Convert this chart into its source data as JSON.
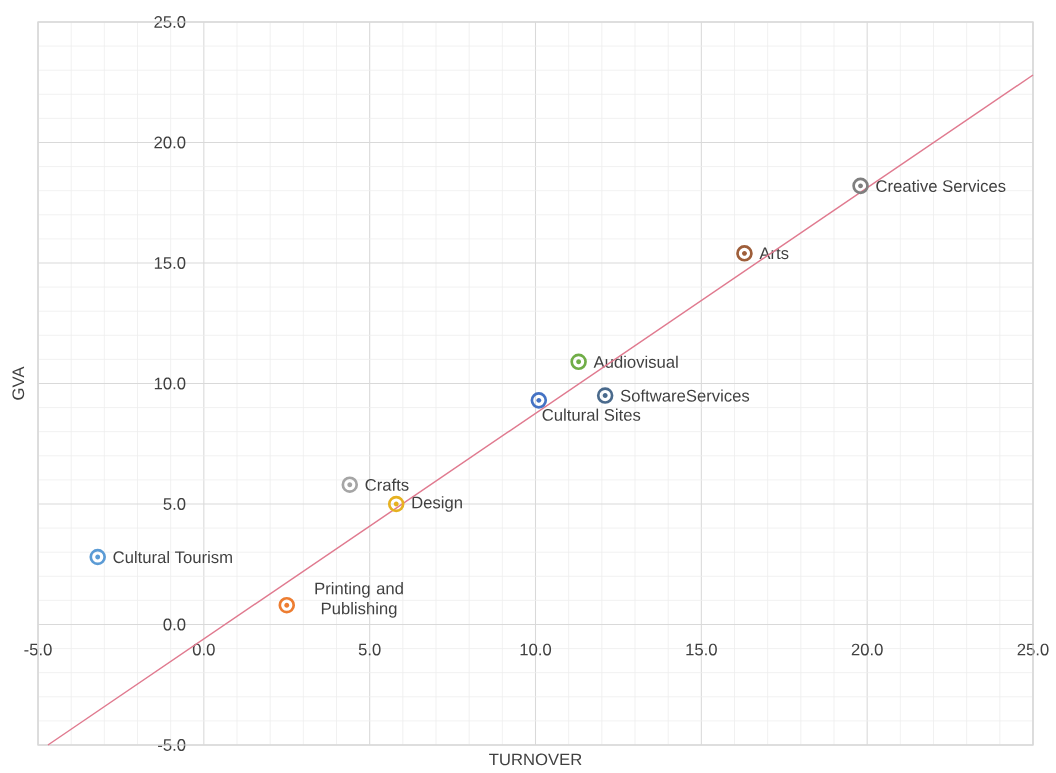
{
  "chart_data": {
    "type": "scatter",
    "xlabel": "TURNOVER",
    "ylabel": "GVA",
    "xlim": [
      -5,
      25
    ],
    "ylim": [
      -5,
      25
    ],
    "xticks": [
      {
        "value": -5,
        "label": "-5.0"
      },
      {
        "value": 0,
        "label": "0.0"
      },
      {
        "value": 5,
        "label": "5.0"
      },
      {
        "value": 10,
        "label": "10.0"
      },
      {
        "value": 15,
        "label": "15.0"
      },
      {
        "value": 20,
        "label": "20.0"
      },
      {
        "value": 25,
        "label": "25.0"
      }
    ],
    "yticks": [
      {
        "value": -5,
        "label": "-5.0"
      },
      {
        "value": 0,
        "label": "0.0"
      },
      {
        "value": 5,
        "label": "5.0"
      },
      {
        "value": 10,
        "label": "10.0"
      },
      {
        "value": 15,
        "label": "15.0"
      },
      {
        "value": 20,
        "label": "20.0"
      },
      {
        "value": 25,
        "label": "25.0"
      }
    ],
    "grid": true,
    "marker": "circle",
    "series": [
      {
        "name": "Cultural Tourism",
        "color": "#5b9bd5",
        "x": [
          -3.2
        ],
        "values": [
          2.8
        ]
      },
      {
        "name": "Printing and Publishing",
        "color": "#ed7d31",
        "x": [
          2.5
        ],
        "values": [
          0.8
        ]
      },
      {
        "name": "Crafts",
        "color": "#a5a5a5",
        "x": [
          4.4
        ],
        "values": [
          5.8
        ]
      },
      {
        "name": "Design",
        "color": "#e6b120",
        "x": [
          5.8
        ],
        "values": [
          5.0
        ]
      },
      {
        "name": "Cultural Sites",
        "color": "#4472c4",
        "x": [
          10.1
        ],
        "values": [
          9.3
        ]
      },
      {
        "name": "Audiovisual",
        "color": "#70ad47",
        "x": [
          11.3
        ],
        "values": [
          10.9
        ]
      },
      {
        "name": "SoftwareServices",
        "color": "#4a6a8c",
        "x": [
          12.1
        ],
        "values": [
          9.5
        ]
      },
      {
        "name": "Arts",
        "color": "#9e5e3a",
        "x": [
          16.3
        ],
        "values": [
          15.4
        ]
      },
      {
        "name": "Creative Services",
        "color": "#7f7f7f",
        "x": [
          19.8
        ],
        "values": [
          18.2
        ]
      },
      {
        "type": "line",
        "marker": "none",
        "color": "#e07a8f",
        "x": [
          -4.7,
          25
        ],
        "values": [
          -5,
          22.8
        ]
      }
    ]
  }
}
